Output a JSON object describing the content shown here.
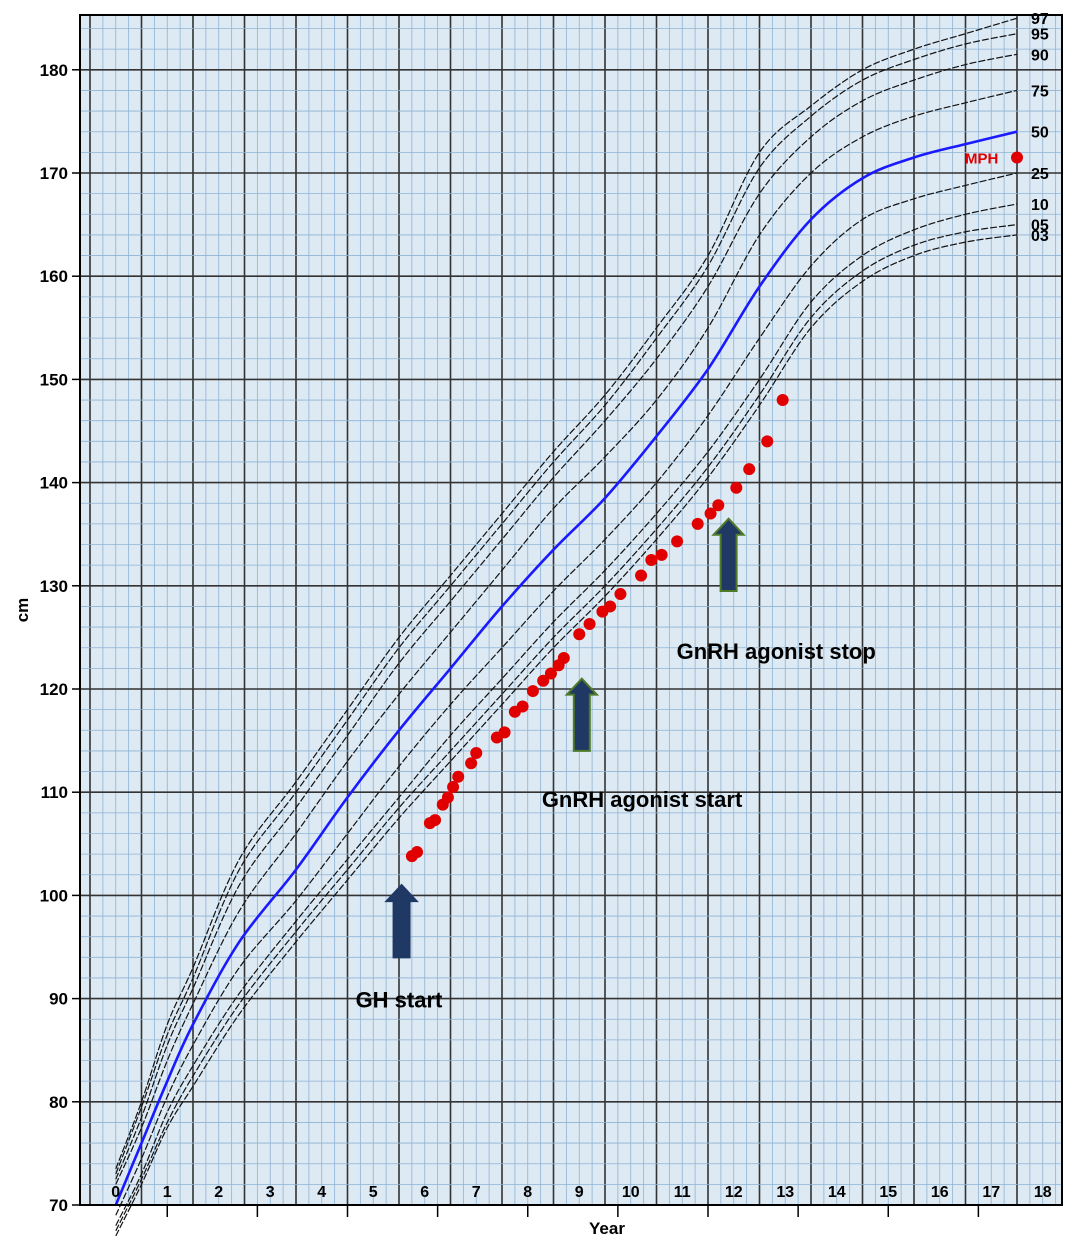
{
  "chart_data": {
    "type": "line",
    "xlabel": "Year",
    "ylabel": "cm",
    "xlim": [
      0,
      18.5
    ],
    "ylim": [
      70,
      185
    ],
    "x_ticks": [
      "0",
      "1",
      "2",
      "3",
      "4",
      "5",
      "6",
      "7",
      "8",
      "9",
      "10",
      "11",
      "12",
      "13",
      "14",
      "15",
      "16",
      "17",
      "18"
    ],
    "y_ticks": [
      "70",
      "80",
      "90",
      "100",
      "110",
      "120",
      "130",
      "140",
      "150",
      "160",
      "170",
      "180"
    ],
    "grid": "on",
    "percentile_curves": [
      {
        "name": "97",
        "points": [
          [
            0.5,
            73.5
          ],
          [
            1,
            80
          ],
          [
            1.5,
            87.5
          ],
          [
            2,
            93
          ],
          [
            2.9,
            103.5
          ],
          [
            4,
            111
          ],
          [
            5,
            118
          ],
          [
            6,
            125
          ],
          [
            7,
            131
          ],
          [
            8,
            137
          ],
          [
            9,
            143
          ],
          [
            10,
            148.5
          ],
          [
            11,
            155
          ],
          [
            12,
            162
          ],
          [
            13,
            172
          ],
          [
            14,
            176.5
          ],
          [
            15,
            180
          ],
          [
            16,
            182
          ],
          [
            17,
            183.5
          ],
          [
            18,
            185
          ]
        ]
      },
      {
        "name": "95",
        "points": [
          [
            0.5,
            73
          ],
          [
            1,
            79.5
          ],
          [
            1.5,
            86.5
          ],
          [
            2,
            92
          ],
          [
            2.9,
            102.5
          ],
          [
            4,
            110
          ],
          [
            5,
            117
          ],
          [
            6,
            124
          ],
          [
            7,
            130
          ],
          [
            8,
            136
          ],
          [
            9,
            142
          ],
          [
            10,
            147.5
          ],
          [
            11,
            154
          ],
          [
            12,
            161
          ],
          [
            13,
            170.5
          ],
          [
            14,
            175.5
          ],
          [
            15,
            179
          ],
          [
            16,
            181
          ],
          [
            17,
            182.5
          ],
          [
            18,
            183.5
          ]
        ]
      },
      {
        "name": "90",
        "points": [
          [
            0.5,
            72.5
          ],
          [
            1,
            78.5
          ],
          [
            1.5,
            85.5
          ],
          [
            2,
            91
          ],
          [
            2.9,
            101
          ],
          [
            4,
            108.5
          ],
          [
            5,
            115.5
          ],
          [
            6,
            122.5
          ],
          [
            7,
            128.5
          ],
          [
            8,
            134.5
          ],
          [
            9,
            140.5
          ],
          [
            10,
            146
          ],
          [
            11,
            152
          ],
          [
            12,
            159
          ],
          [
            13,
            168
          ],
          [
            14,
            173.5
          ],
          [
            15,
            177
          ],
          [
            16,
            179
          ],
          [
            17,
            180.5
          ],
          [
            18,
            181.5
          ]
        ]
      },
      {
        "name": "75",
        "points": [
          [
            0.5,
            72
          ],
          [
            1,
            77.5
          ],
          [
            1.5,
            84
          ],
          [
            2,
            89.5
          ],
          [
            2.9,
            98.5
          ],
          [
            4,
            106
          ],
          [
            5,
            113
          ],
          [
            6,
            119.5
          ],
          [
            7,
            125.5
          ],
          [
            8,
            131.5
          ],
          [
            9,
            137.5
          ],
          [
            10,
            142.5
          ],
          [
            11,
            148
          ],
          [
            12,
            155
          ],
          [
            13,
            164
          ],
          [
            14,
            170
          ],
          [
            15,
            173.5
          ],
          [
            16,
            175.5
          ],
          [
            17,
            176.8
          ],
          [
            18,
            178
          ]
        ]
      },
      {
        "name": "50",
        "points": [
          [
            0.5,
            70
          ],
          [
            1,
            76
          ],
          [
            1.5,
            82
          ],
          [
            2,
            87.5
          ],
          [
            2.9,
            95.5
          ],
          [
            4,
            102.5
          ],
          [
            5,
            109.5
          ],
          [
            6,
            116
          ],
          [
            7,
            122
          ],
          [
            8,
            128
          ],
          [
            9,
            133.5
          ],
          [
            10,
            138.5
          ],
          [
            11,
            144.5
          ],
          [
            12,
            151
          ],
          [
            13,
            159
          ],
          [
            14,
            165.5
          ],
          [
            15,
            169.5
          ],
          [
            16,
            171.5
          ],
          [
            17,
            172.8
          ],
          [
            18,
            174
          ]
        ]
      },
      {
        "name": "25",
        "points": [
          [
            0.5,
            69
          ],
          [
            1,
            74.5
          ],
          [
            1.5,
            80.5
          ],
          [
            2,
            85.5
          ],
          [
            2.9,
            93
          ],
          [
            4,
            99.5
          ],
          [
            5,
            106
          ],
          [
            6,
            112.5
          ],
          [
            7,
            118.5
          ],
          [
            8,
            124
          ],
          [
            9,
            129.5
          ],
          [
            10,
            134.5
          ],
          [
            11,
            140
          ],
          [
            12,
            146.5
          ],
          [
            13,
            154
          ],
          [
            14,
            161
          ],
          [
            15,
            165.5
          ],
          [
            16,
            167.5
          ],
          [
            17,
            168.8
          ],
          [
            18,
            170
          ]
        ]
      },
      {
        "name": "10",
        "points": [
          [
            0.5,
            68
          ],
          [
            1,
            73
          ],
          [
            1.5,
            79
          ],
          [
            2,
            83.5
          ],
          [
            2.9,
            90.5
          ],
          [
            4,
            97.5
          ],
          [
            5,
            103.5
          ],
          [
            6,
            109.5
          ],
          [
            7,
            115.5
          ],
          [
            8,
            121
          ],
          [
            9,
            126.5
          ],
          [
            10,
            131.5
          ],
          [
            11,
            137
          ],
          [
            12,
            143
          ],
          [
            13,
            150
          ],
          [
            14,
            157.5
          ],
          [
            15,
            162
          ],
          [
            16,
            164.5
          ],
          [
            17,
            166
          ],
          [
            18,
            167
          ]
        ]
      },
      {
        "name": "05",
        "points": [
          [
            0.5,
            67.5
          ],
          [
            1,
            72.5
          ],
          [
            1.5,
            78
          ],
          [
            2,
            82.5
          ],
          [
            2.9,
            89.5
          ],
          [
            4,
            96.5
          ],
          [
            5,
            102.5
          ],
          [
            6,
            108.5
          ],
          [
            7,
            114
          ],
          [
            8,
            119.5
          ],
          [
            9,
            125
          ],
          [
            10,
            130
          ],
          [
            11,
            135.5
          ],
          [
            12,
            141.5
          ],
          [
            13,
            148.5
          ],
          [
            14,
            156
          ],
          [
            15,
            160.5
          ],
          [
            16,
            163
          ],
          [
            17,
            164.3
          ],
          [
            18,
            165
          ]
        ]
      },
      {
        "name": "03",
        "points": [
          [
            0.5,
            67
          ],
          [
            1,
            72
          ],
          [
            1.5,
            77.5
          ],
          [
            2,
            81.5
          ],
          [
            2.9,
            88.5
          ],
          [
            4,
            95.5
          ],
          [
            5,
            101.5
          ],
          [
            6,
            107.5
          ],
          [
            7,
            113
          ],
          [
            8,
            118.5
          ],
          [
            9,
            124
          ],
          [
            10,
            129
          ],
          [
            11,
            134.5
          ],
          [
            12,
            140.5
          ],
          [
            13,
            147.5
          ],
          [
            14,
            155
          ],
          [
            15,
            159.5
          ],
          [
            16,
            162
          ],
          [
            17,
            163.3
          ],
          [
            18,
            164
          ]
        ]
      }
    ],
    "patient_series": {
      "points": [
        [
          6.25,
          103.8
        ],
        [
          6.35,
          104.2
        ],
        [
          6.6,
          107
        ],
        [
          6.7,
          107.3
        ],
        [
          6.85,
          108.8
        ],
        [
          6.95,
          109.5
        ],
        [
          7.05,
          110.5
        ],
        [
          7.15,
          111.5
        ],
        [
          7.4,
          112.8
        ],
        [
          7.5,
          113.8
        ],
        [
          7.9,
          115.3
        ],
        [
          8.05,
          115.8
        ],
        [
          8.25,
          117.8
        ],
        [
          8.4,
          118.3
        ],
        [
          8.6,
          119.8
        ],
        [
          8.8,
          120.8
        ],
        [
          8.95,
          121.5
        ],
        [
          9.1,
          122.3
        ],
        [
          9.2,
          123
        ],
        [
          9.5,
          125.3
        ],
        [
          9.7,
          126.3
        ],
        [
          9.95,
          127.5
        ],
        [
          10.1,
          128
        ],
        [
          10.3,
          129.2
        ],
        [
          10.7,
          131
        ],
        [
          10.9,
          132.5
        ],
        [
          11.1,
          133
        ],
        [
          11.4,
          134.3
        ],
        [
          11.8,
          136
        ],
        [
          12.05,
          137
        ],
        [
          12.2,
          137.8
        ],
        [
          12.55,
          139.5
        ],
        [
          12.8,
          141.3
        ],
        [
          13.15,
          144
        ],
        [
          13.45,
          148
        ]
      ]
    },
    "mph": {
      "label": "MPH",
      "x": 18,
      "y": 171.5
    },
    "annotations": [
      {
        "text": "GH start",
        "arrow_x": 6.05,
        "arrow_y_top": 101,
        "arrow_y_bottom": 94,
        "arrow_color": "#1f3864"
      },
      {
        "text": "GnRH agonist start",
        "arrow_x": 9.55,
        "arrow_y_top": 121,
        "arrow_y_bottom": 114,
        "arrow_color": "#1f3864"
      },
      {
        "text": "GnRH agonist stop",
        "arrow_x": 12.4,
        "arrow_y_top": 136.5,
        "arrow_y_bottom": 129.5,
        "arrow_color": "#1f3864"
      }
    ],
    "colors": {
      "background": "#dde9f3",
      "grid_minor": "#8fb4d4",
      "grid_major": "#333333",
      "percentile": "#111111",
      "median": "#1a1aff",
      "patient": "#e00000",
      "mph": "#e00000",
      "arrow_outline": "#4f7a28"
    }
  }
}
